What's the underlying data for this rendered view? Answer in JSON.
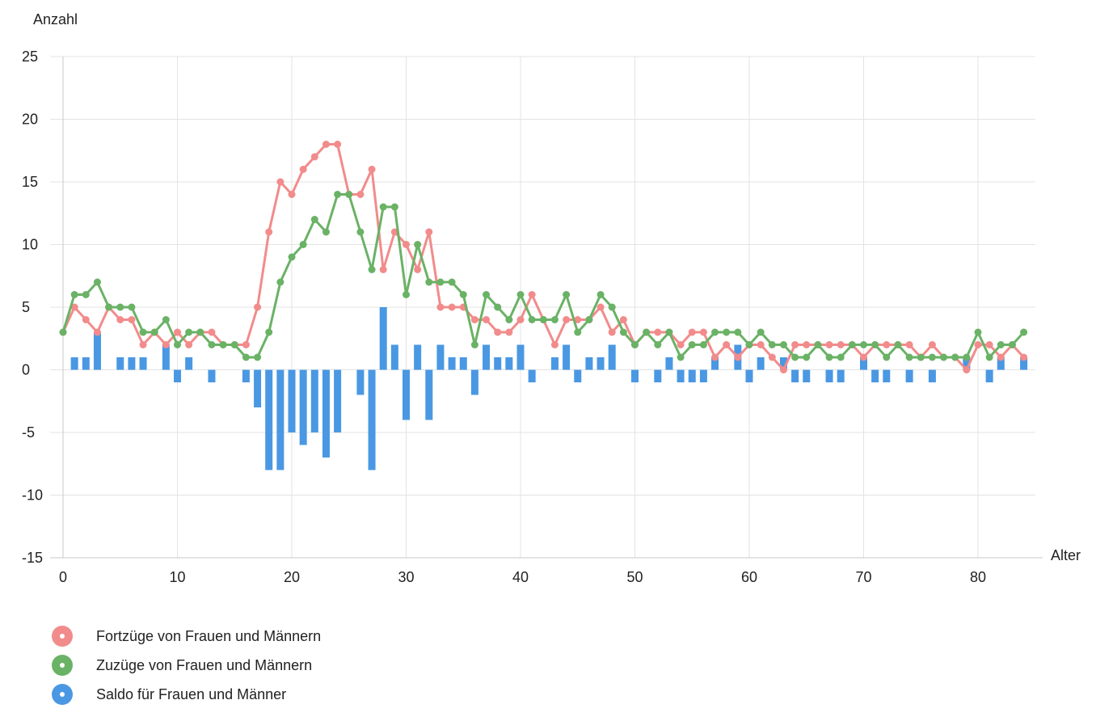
{
  "chart_data": {
    "type": "line+bar",
    "ylabel": "Anzahl",
    "xlabel": "Alter",
    "ylim": [
      -15,
      25
    ],
    "xlim": [
      0,
      85
    ],
    "yticks": [
      25,
      20,
      15,
      10,
      5,
      0,
      -5,
      -10,
      -15
    ],
    "xticks": [
      0,
      10,
      20,
      30,
      40,
      50,
      60,
      70,
      80
    ],
    "grid": true,
    "legend_position": "bottom-left",
    "x": [
      0,
      1,
      2,
      3,
      4,
      5,
      6,
      7,
      8,
      9,
      10,
      11,
      12,
      13,
      14,
      15,
      16,
      17,
      18,
      19,
      20,
      21,
      22,
      23,
      24,
      25,
      26,
      27,
      28,
      29,
      30,
      31,
      32,
      33,
      34,
      35,
      36,
      37,
      38,
      39,
      40,
      41,
      42,
      43,
      44,
      45,
      46,
      47,
      48,
      49,
      50,
      51,
      52,
      53,
      54,
      55,
      56,
      57,
      58,
      59,
      60,
      61,
      62,
      63,
      64,
      65,
      66,
      67,
      68,
      69,
      70,
      71,
      72,
      73,
      74,
      75,
      76,
      77,
      78,
      79,
      80,
      81,
      82,
      83,
      84
    ],
    "series": [
      {
        "name": "Fortzüge von Frauen und Männern",
        "kind": "line",
        "color": "#f28b8b",
        "values": [
          3,
          5,
          4,
          3,
          5,
          4,
          4,
          2,
          3,
          2,
          3,
          2,
          3,
          3,
          2,
          2,
          2,
          5,
          11,
          15,
          14,
          16,
          17,
          18,
          18,
          14,
          14,
          16,
          8,
          11,
          10,
          8,
          11,
          5,
          5,
          5,
          4,
          4,
          3,
          3,
          4,
          6,
          4,
          2,
          4,
          4,
          4,
          5,
          3,
          4,
          2,
          3,
          3,
          3,
          2,
          3,
          3,
          1,
          2,
          1,
          2,
          2,
          1,
          0,
          2,
          2,
          2,
          2,
          2,
          2,
          1,
          2,
          2,
          2,
          2,
          1,
          2,
          1,
          1,
          0,
          2,
          2,
          1,
          2,
          1
        ]
      },
      {
        "name": "Zuzüge von Frauen und Männern",
        "kind": "line",
        "color": "#6ab266",
        "values": [
          3,
          6,
          6,
          7,
          5,
          5,
          5,
          3,
          3,
          4,
          2,
          3,
          3,
          2,
          2,
          2,
          1,
          1,
          3,
          7,
          9,
          10,
          12,
          11,
          14,
          14,
          11,
          8,
          13,
          13,
          6,
          10,
          7,
          7,
          7,
          6,
          2,
          6,
          5,
          4,
          6,
          4,
          4,
          4,
          6,
          3,
          4,
          6,
          5,
          3,
          2,
          3,
          2,
          3,
          1,
          2,
          2,
          3,
          3,
          3,
          2,
          3,
          2,
          2,
          1,
          1,
          2,
          1,
          1,
          2,
          2,
          2,
          1,
          2,
          1,
          1,
          1,
          1,
          1,
          1,
          3,
          1,
          2,
          2,
          3
        ]
      },
      {
        "name": "Saldo für Frauen und Männer",
        "kind": "bar",
        "color": "#4a98e3",
        "values": [
          0,
          1,
          1,
          3,
          0,
          1,
          1,
          1,
          0,
          2,
          -1,
          1,
          0,
          -1,
          0,
          0,
          -1,
          -3,
          -8,
          -8,
          -5,
          -6,
          -5,
          -7,
          -5,
          0,
          -2,
          -8,
          5,
          2,
          -4,
          2,
          -4,
          2,
          1,
          1,
          -2,
          2,
          1,
          1,
          2,
          -1,
          0,
          1,
          2,
          -1,
          1,
          1,
          2,
          0,
          -1,
          0,
          -1,
          1,
          -1,
          -1,
          -1,
          1,
          0,
          2,
          -1,
          1,
          0,
          1,
          -1,
          -1,
          0,
          -1,
          -1,
          0,
          1,
          -1,
          -1,
          0,
          -1,
          0,
          -1,
          0,
          0,
          1,
          0,
          -1,
          1,
          0,
          1
        ]
      }
    ]
  }
}
